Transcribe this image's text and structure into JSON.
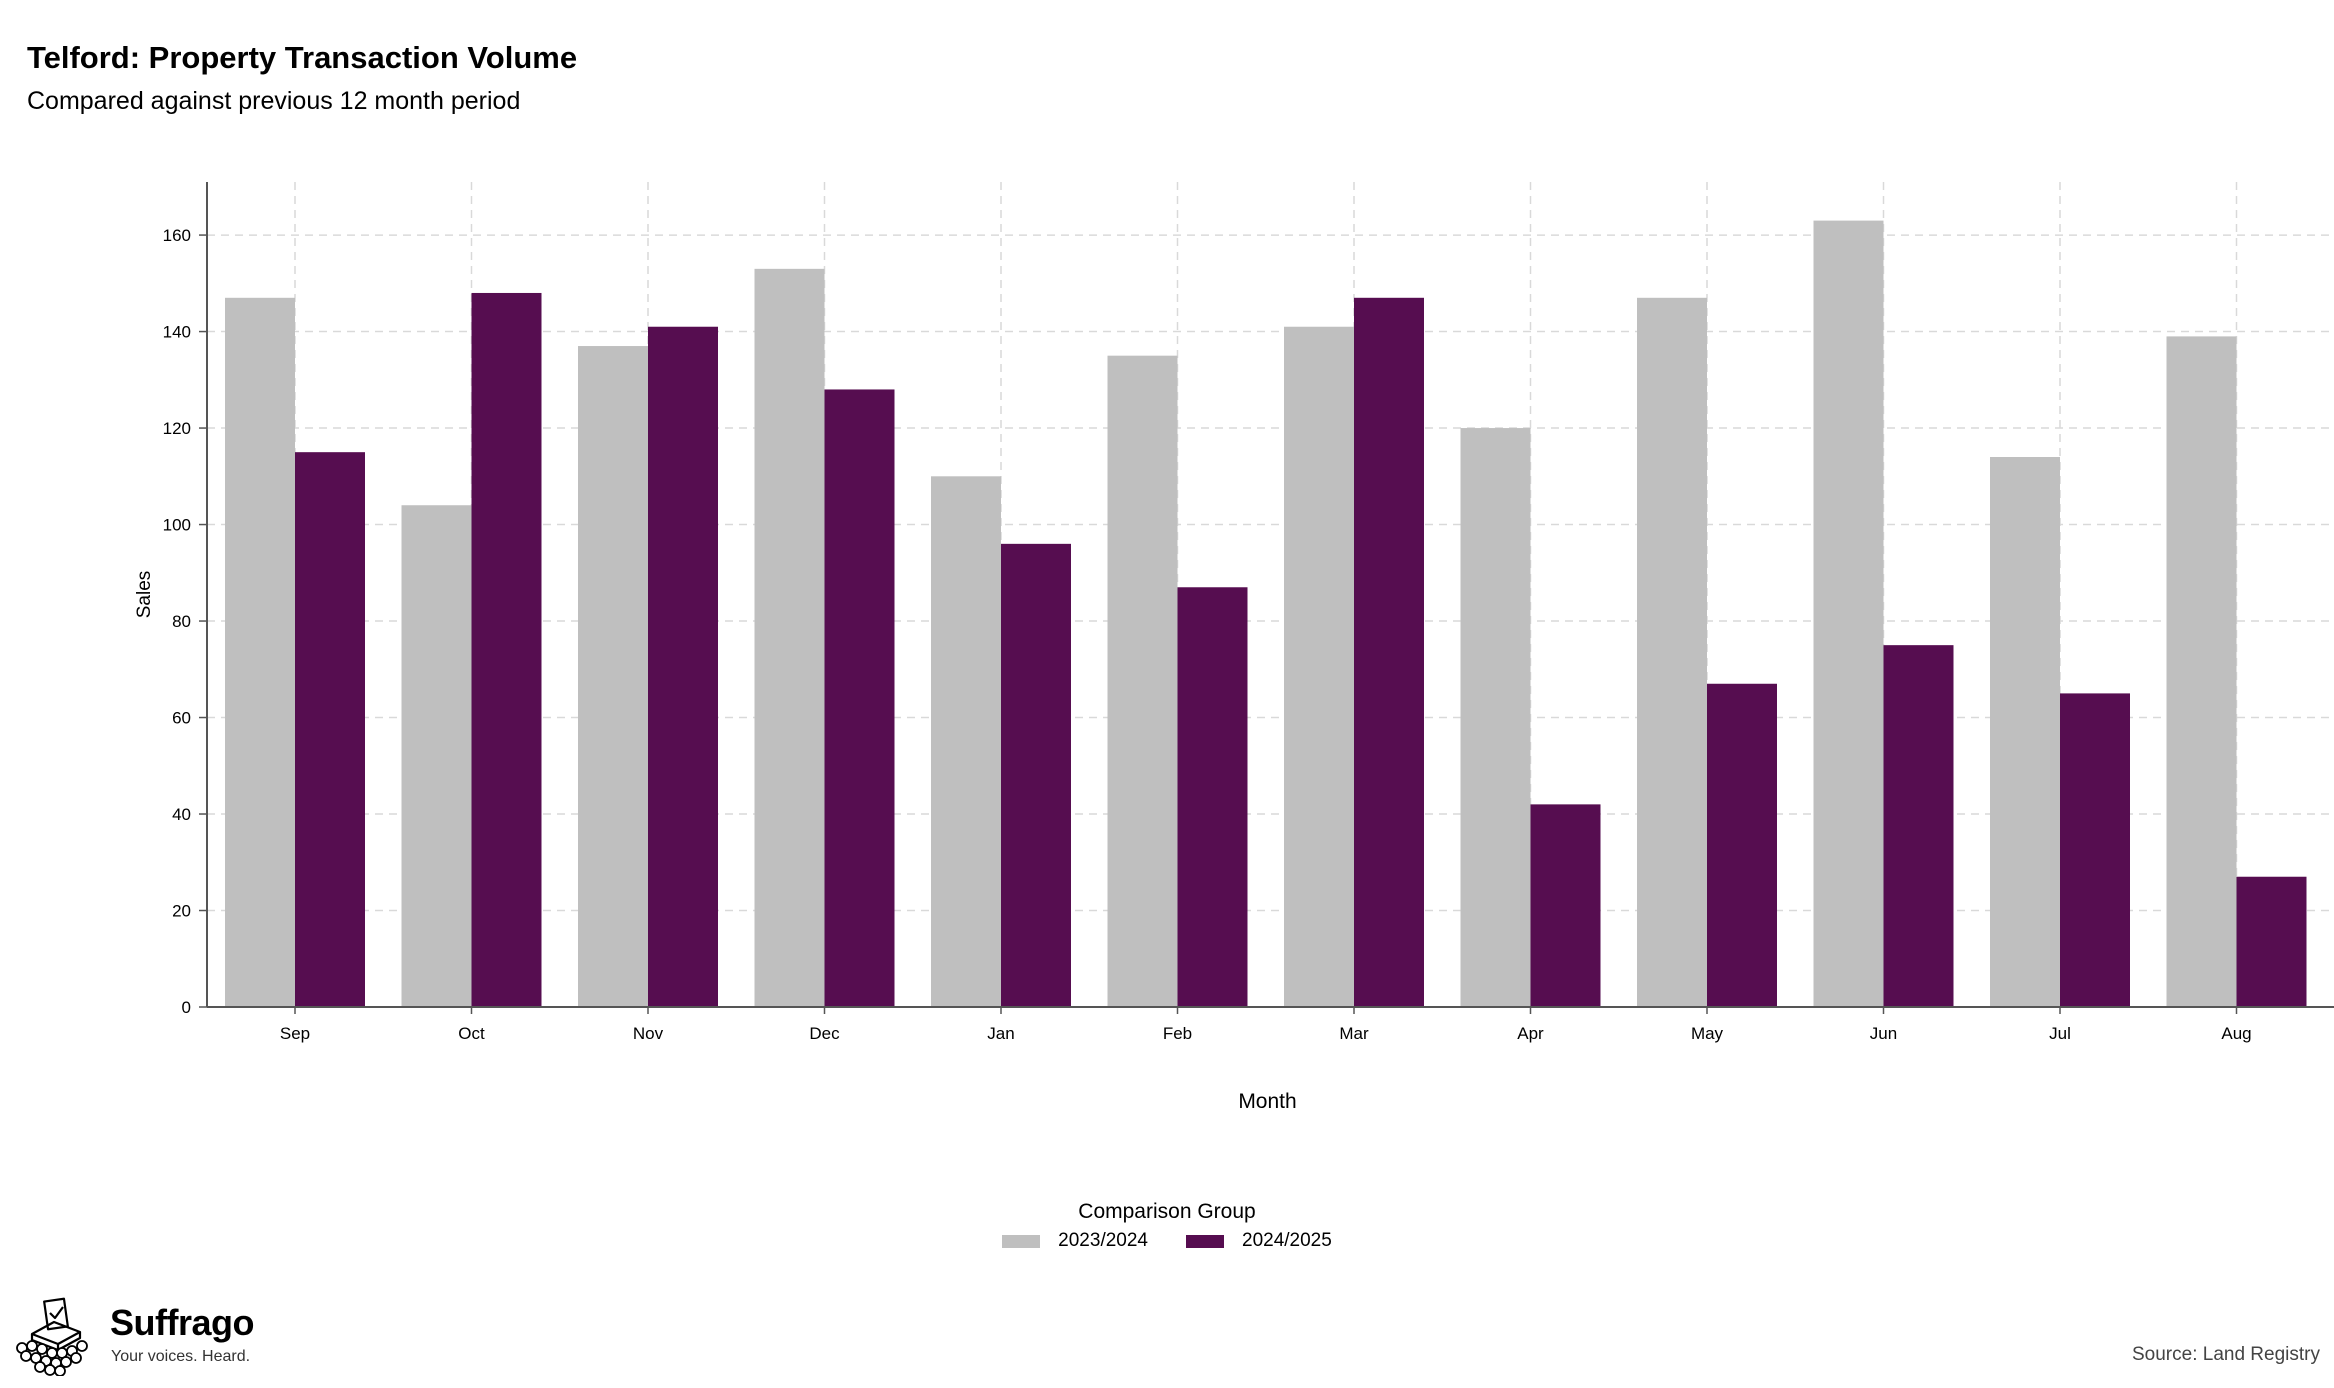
{
  "chart_data": {
    "type": "bar",
    "title": "Telford: Property Transaction Volume",
    "subtitle": "Compared against previous 12 month period",
    "xlabel": "Month",
    "ylabel": "Sales",
    "categories": [
      "Sep",
      "Oct",
      "Nov",
      "Dec",
      "Jan",
      "Feb",
      "Mar",
      "Apr",
      "May",
      "Jun",
      "Jul",
      "Aug"
    ],
    "series": [
      {
        "name": "2023/2024",
        "color": "#bfbfbf",
        "values": [
          147,
          104,
          137,
          153,
          110,
          135,
          141,
          120,
          147,
          163,
          114,
          139
        ]
      },
      {
        "name": "2024/2025",
        "color": "#560d50",
        "values": [
          115,
          148,
          141,
          128,
          96,
          87,
          147,
          42,
          67,
          75,
          65,
          27
        ]
      }
    ],
    "ylim": [
      0,
      171
    ],
    "yticks": [
      0,
      20,
      40,
      60,
      80,
      100,
      120,
      140,
      160
    ],
    "grid": true,
    "legend": {
      "title": "Comparison Group",
      "position": "bottom"
    }
  },
  "branding": {
    "name": "Suffrago",
    "tagline": "Your voices. Heard.",
    "logo_icon": "ballot-box-icon"
  },
  "source": "Source: Land Registry"
}
